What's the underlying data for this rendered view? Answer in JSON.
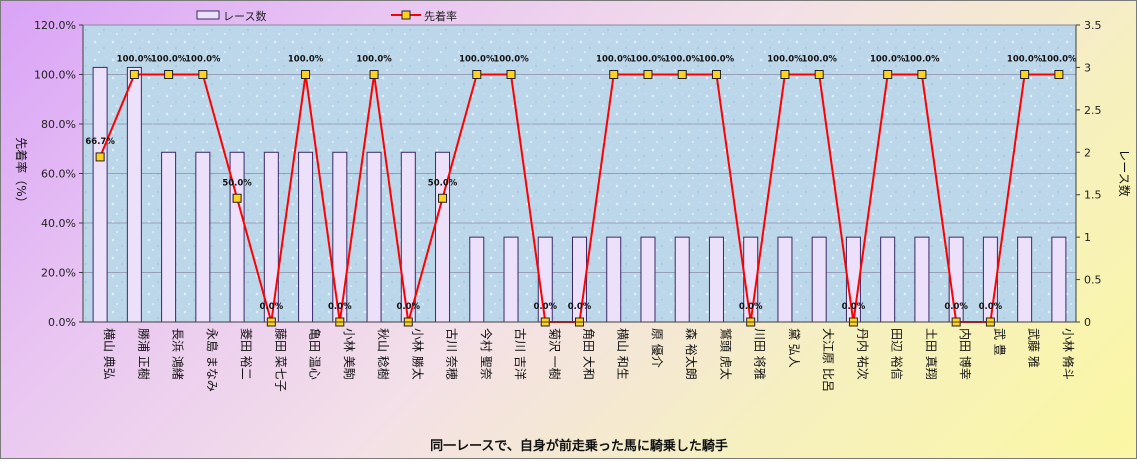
{
  "chart_data": {
    "type": "bar+line",
    "title": "",
    "xlabel": "同一レースで、自身が前走乗った馬に騎乗した騎手",
    "ylabel_left": "先着率（%）",
    "ylabel_right": "レース数",
    "ylim_left": [
      0,
      120
    ],
    "ylim_right": [
      0,
      3.5
    ],
    "left_ticks": [
      "0.0%",
      "20.0%",
      "40.0%",
      "60.0%",
      "80.0%",
      "100.0%",
      "120.0%"
    ],
    "right_ticks": [
      "0",
      "0.5",
      "1",
      "1.5",
      "2",
      "2.5",
      "3",
      "3.5"
    ],
    "grid": true,
    "legend_position": "top",
    "colors": {
      "bar_fill": "#ece0fb",
      "bar_stroke": "#3a2a66",
      "line": "#ff0000",
      "marker_fill": "#ffd21f",
      "marker_stroke": "#222222",
      "plot_bg": "#bcd6ea"
    },
    "categories": [
      "横山 典弘",
      "勝浦 正樹",
      "長浜 鴻緒",
      "永島 まなみ",
      "菱田 裕二",
      "藤田 菜七子",
      "亀田 温心",
      "小林 美駒",
      "秋山 稔樹",
      "小林 勝太",
      "古川 奈穂",
      "今村 聖奈",
      "古川 吉洋",
      "菊沢 一樹",
      "角田 大和",
      "横山 和生",
      "原 優介",
      "森 裕太朗",
      "鷲頭 虎太",
      "川田 将雅",
      "黛 弘人",
      "大江原 比呂",
      "丹内 祐次",
      "田辺 裕信",
      "土田 真翔",
      "内田 博幸",
      "武 豊",
      "武藤 雅",
      "小林 脩斗"
    ],
    "series": [
      {
        "name": "レース数",
        "kind": "bar",
        "axis": "right",
        "values": [
          3,
          3,
          2,
          2,
          2,
          2,
          2,
          2,
          2,
          2,
          2,
          1,
          1,
          1,
          1,
          1,
          1,
          1,
          1,
          1,
          1,
          1,
          1,
          1,
          1,
          1,
          1,
          1,
          1
        ]
      },
      {
        "name": "先着率",
        "kind": "line",
        "axis": "left",
        "values": [
          66.7,
          100,
          100,
          100,
          50,
          0,
          100,
          0,
          100,
          0,
          50,
          100,
          100,
          0,
          0,
          100,
          100,
          100,
          100,
          0,
          100,
          100,
          0,
          100,
          100,
          0,
          0,
          100,
          100
        ]
      }
    ],
    "data_labels": [
      "66.7%",
      "100.0%",
      "100.0%",
      "100.0%",
      "50.0%",
      "0.0%",
      "100.0%",
      "0.0%",
      "100.0%",
      "0.0%",
      "50.0%",
      "100.0%",
      "100.0%",
      "0.0%",
      "0.0%",
      "100.0%",
      "100.0%",
      "100.0%",
      "100.0%",
      "0.0%",
      "100.0%",
      "100.0%",
      "0.0%",
      "100.0%",
      "100.0%",
      "0.0%",
      "0.0%",
      "100.0%",
      "100.0%"
    ]
  }
}
